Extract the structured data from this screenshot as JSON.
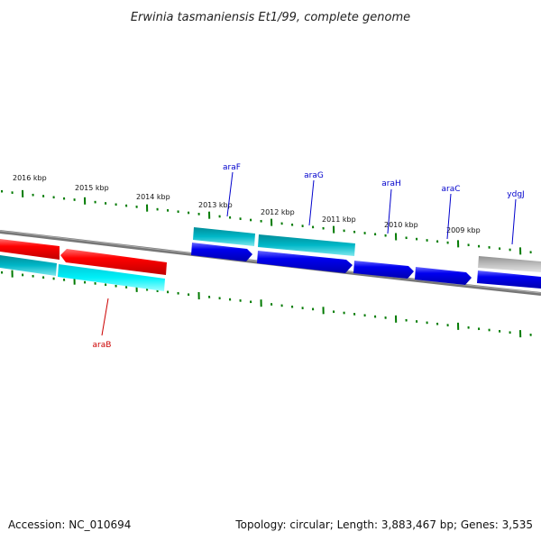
{
  "title": "Erwinia tasmaniensis Et1/99, complete genome",
  "footer": {
    "accession": "Accession: NC_010694",
    "summary": "Topology: circular; Length: 3,883,467 bp; Genes: 3,535"
  },
  "colors": {
    "forward_gene": "#0000ee",
    "reverse_gene": "#ff0000",
    "forward_cds": "#00b8c8",
    "reverse_cds": "#00e0ec",
    "other_gene": "#b0b0b0",
    "tick": "#007a00",
    "backbone": "#777777",
    "forward_label": "#0000cc",
    "reverse_label": "#cc0000"
  },
  "scale_labels": [
    "2016 kbp",
    "2015 kbp",
    "2014 kbp",
    "2013 kbp",
    "2012 kbp",
    "2011 kbp",
    "2010 kbp",
    "2009 kbp"
  ],
  "genes": [
    {
      "name": "araF",
      "strand": "forward"
    },
    {
      "name": "araG",
      "strand": "forward"
    },
    {
      "name": "araH",
      "strand": "forward"
    },
    {
      "name": "araC",
      "strand": "forward"
    },
    {
      "name": "ydgJ",
      "strand": "forward"
    },
    {
      "name": "araB",
      "strand": "reverse"
    }
  ]
}
